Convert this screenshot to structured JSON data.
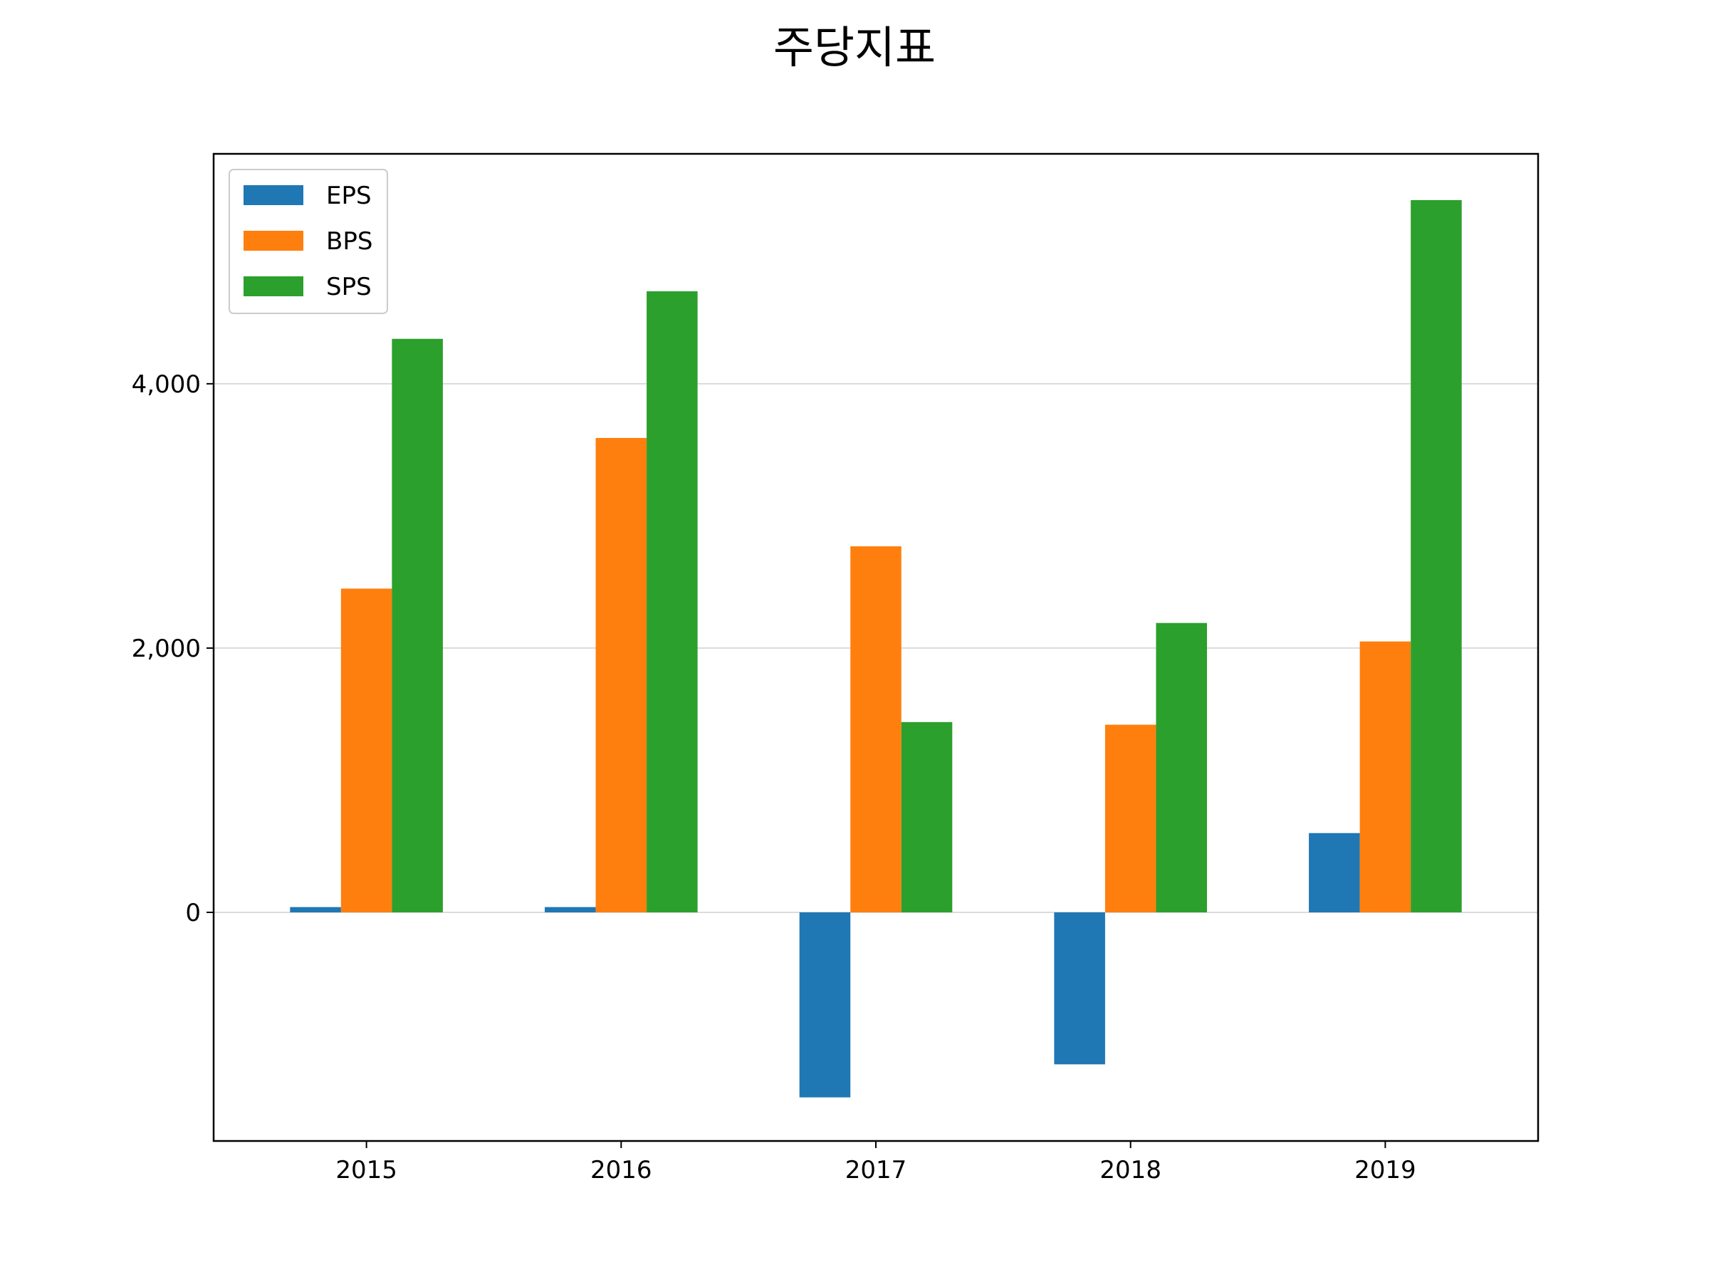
{
  "chart_data": {
    "type": "bar",
    "title": "주당지표",
    "xlabel": "",
    "ylabel": "",
    "categories": [
      "2015",
      "2016",
      "2017",
      "2018",
      "2019"
    ],
    "series": [
      {
        "name": "EPS",
        "color": "#1f77b4",
        "values": [
          40,
          40,
          -1400,
          -1150,
          600
        ]
      },
      {
        "name": "BPS",
        "color": "#ff7f0e",
        "values": [
          2450,
          3590,
          2770,
          1420,
          2050
        ]
      },
      {
        "name": "SPS",
        "color": "#2ca02c",
        "values": [
          4340,
          4700,
          1440,
          2190,
          5390
        ]
      }
    ],
    "ylim": [
      -1730,
      5740
    ],
    "yticks": [
      0,
      2000,
      4000
    ],
    "ytick_labels": [
      "0",
      "2,000",
      "4,000"
    ],
    "grid": "horizontal",
    "legend_position": "upper left"
  }
}
